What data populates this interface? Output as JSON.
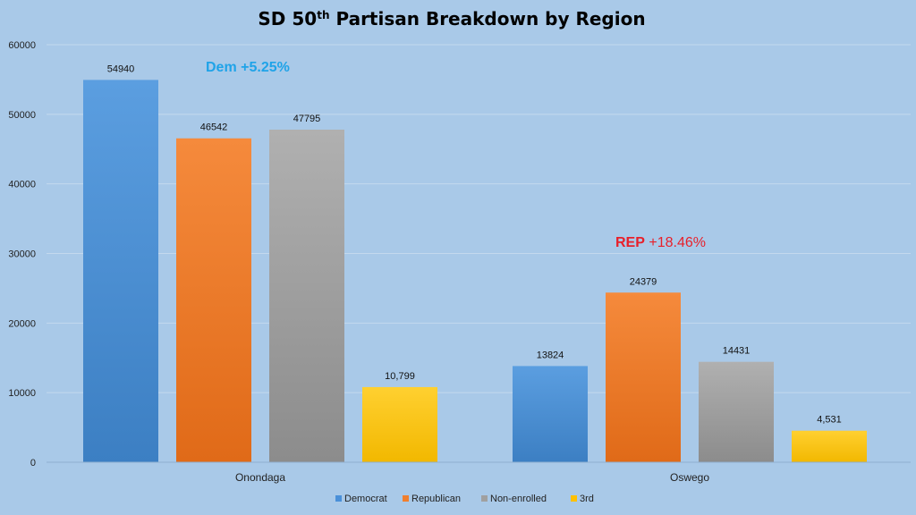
{
  "chart_data": {
    "type": "bar",
    "title": {
      "main": "SD 50",
      "sup": "th",
      "rest": " Partisan Breakdown by Region"
    },
    "categories": [
      "Onondaga",
      "Oswego"
    ],
    "series": [
      {
        "name": "Democrat",
        "values": [
          54940,
          13824
        ],
        "labels": [
          "54940",
          "13824"
        ],
        "color": "#4a90d9"
      },
      {
        "name": "Republican",
        "values": [
          46542,
          24379
        ],
        "labels": [
          "46542",
          "24379"
        ],
        "color": "#f07f2e"
      },
      {
        "name": "Non-enrolled",
        "values": [
          47795,
          14431
        ],
        "labels": [
          "47795",
          "14431"
        ],
        "color": "#a0a0a0"
      },
      {
        "name": "3rd",
        "values": [
          10799,
          4531
        ],
        "labels": [
          "10,799",
          "4,531"
        ],
        "color": "#ffc000"
      }
    ],
    "ylim": [
      0,
      60000
    ],
    "yticks": [
      "0",
      "10000",
      "20000",
      "30000",
      "40000",
      "50000",
      "60000"
    ],
    "grid": true,
    "legend_position": "bottom-center",
    "annotations": [
      {
        "prefix": "Dem",
        "text": " +5.25%",
        "color": "#1fa3e8"
      },
      {
        "prefix": "REP",
        "text": " +18.46%",
        "color": "#e8202a"
      }
    ]
  }
}
